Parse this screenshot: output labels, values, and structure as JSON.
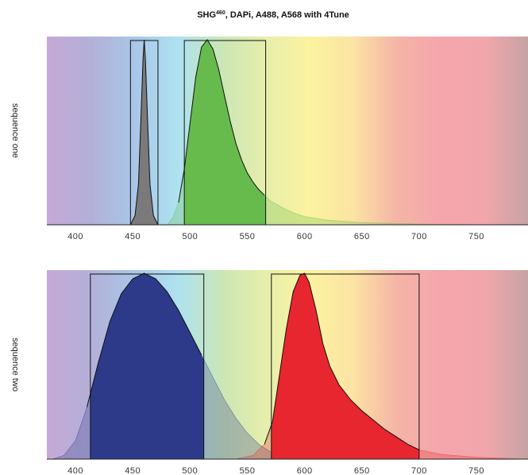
{
  "chart_data": {
    "type": "area",
    "title_main": "SHG",
    "title_sup": "460",
    "title_rest": ", DAPi, A488, A568 with 4Tune",
    "x_range": [
      375,
      795
    ],
    "x_ticks": [
      400,
      450,
      500,
      550,
      600,
      650,
      700,
      750
    ],
    "colors": {
      "shg": "#7a7a7a",
      "dapi": "#2d3a8a",
      "a488": "#66bb4c",
      "a568": "#e8262f",
      "spectrum": [
        "#c6a9d6",
        "#b3b0d8",
        "#a9c6e8",
        "#aee2f0",
        "#cbe6b6",
        "#e6eeab",
        "#fbf3a0",
        "#fbe3a4",
        "#f5b4a6",
        "#f4a6ac",
        "#f2a6ab",
        "#c6a3a4"
      ]
    },
    "panels": [
      {
        "label": "sequence one",
        "spectra": [
          {
            "dye": "A488",
            "peak": 515,
            "color_key": "a488",
            "curve": [
              [
                480,
                0.0
              ],
              [
                485,
                0.04
              ],
              [
                490,
                0.12
              ],
              [
                495,
                0.3
              ],
              [
                500,
                0.55
              ],
              [
                505,
                0.8
              ],
              [
                510,
                0.96
              ],
              [
                515,
                1.0
              ],
              [
                520,
                0.95
              ],
              [
                525,
                0.84
              ],
              [
                530,
                0.7
              ],
              [
                535,
                0.56
              ],
              [
                540,
                0.44
              ],
              [
                545,
                0.35
              ],
              [
                550,
                0.28
              ],
              [
                555,
                0.23
              ],
              [
                560,
                0.19
              ],
              [
                565,
                0.16
              ],
              [
                570,
                0.13
              ],
              [
                580,
                0.095
              ],
              [
                590,
                0.065
              ],
              [
                600,
                0.045
              ],
              [
                620,
                0.025
              ],
              [
                650,
                0.012
              ],
              [
                700,
                0.004
              ],
              [
                760,
                0.0
              ]
            ],
            "window": [
              495,
              566
            ]
          },
          {
            "dye": "SHG460",
            "peak": 460,
            "color_key": "shg",
            "curve": [
              [
                448,
                0.0
              ],
              [
                452,
                0.05
              ],
              [
                455,
                0.22
              ],
              [
                457,
                0.55
              ],
              [
                459,
                0.9
              ],
              [
                460,
                1.0
              ],
              [
                461,
                0.9
              ],
              [
                463,
                0.55
              ],
              [
                465,
                0.22
              ],
              [
                468,
                0.05
              ],
              [
                472,
                0.0
              ]
            ],
            "window": [
              448,
              472
            ]
          }
        ]
      },
      {
        "label": "sequence two",
        "spectra": [
          {
            "dye": "DAPi",
            "peak": 460,
            "color_key": "dapi",
            "curve": [
              [
                380,
                0.0
              ],
              [
                390,
                0.02
              ],
              [
                400,
                0.1
              ],
              [
                410,
                0.28
              ],
              [
                420,
                0.52
              ],
              [
                430,
                0.74
              ],
              [
                440,
                0.89
              ],
              [
                450,
                0.97
              ],
              [
                460,
                1.0
              ],
              [
                470,
                0.97
              ],
              [
                480,
                0.9
              ],
              [
                490,
                0.8
              ],
              [
                500,
                0.68
              ],
              [
                510,
                0.56
              ],
              [
                520,
                0.44
              ],
              [
                530,
                0.32
              ],
              [
                540,
                0.22
              ],
              [
                550,
                0.14
              ],
              [
                560,
                0.08
              ],
              [
                570,
                0.04
              ],
              [
                580,
                0.02
              ],
              [
                600,
                0.005
              ],
              [
                620,
                0.0
              ]
            ],
            "window": [
              413,
              512
            ]
          },
          {
            "dye": "A568",
            "peak": 600,
            "color_key": "a568",
            "curve": [
              [
                540,
                0.0
              ],
              [
                555,
                0.02
              ],
              [
                565,
                0.08
              ],
              [
                572,
                0.2
              ],
              [
                578,
                0.45
              ],
              [
                584,
                0.7
              ],
              [
                590,
                0.9
              ],
              [
                596,
                0.99
              ],
              [
                600,
                1.0
              ],
              [
                604,
                0.95
              ],
              [
                610,
                0.8
              ],
              [
                616,
                0.62
              ],
              [
                622,
                0.5
              ],
              [
                630,
                0.4
              ],
              [
                640,
                0.32
              ],
              [
                650,
                0.26
              ],
              [
                660,
                0.21
              ],
              [
                670,
                0.16
              ],
              [
                680,
                0.12
              ],
              [
                690,
                0.08
              ],
              [
                700,
                0.05
              ],
              [
                720,
                0.025
              ],
              [
                750,
                0.01
              ],
              [
                790,
                0.0
              ]
            ],
            "window": [
              571,
              700
            ]
          }
        ]
      }
    ]
  }
}
